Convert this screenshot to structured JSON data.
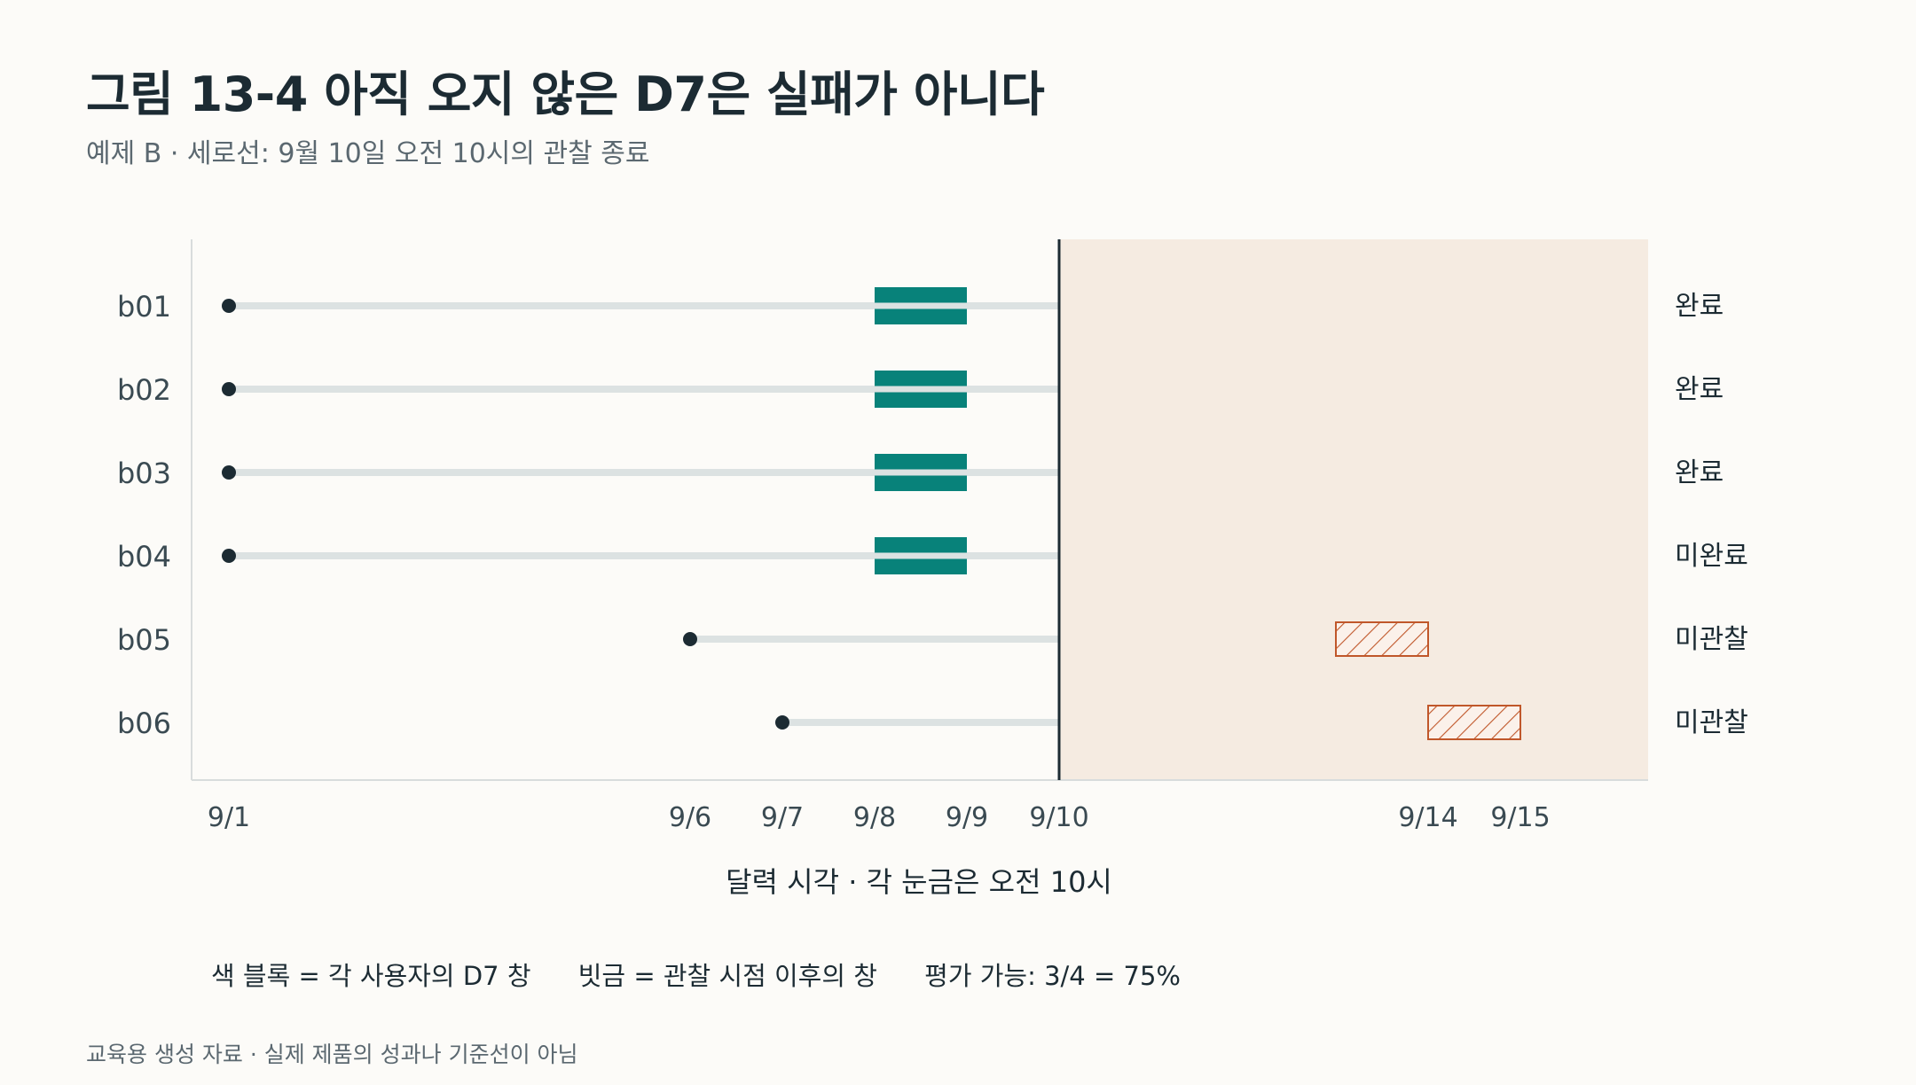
{
  "title": "그림 13-4  아직 오지 않은 D7은 실패가 아니다",
  "subtitle": "예제 B · 세로선: 9월 10일 오전 10시의 관찰 종료",
  "legend": {
    "color_block": "색 블록 = 각 사용자의 D7 창",
    "hatch": "빗금 = 관찰 시점 이후의 창",
    "evaluable": "평가 가능: 3/4 = 75%"
  },
  "footer": "교육용 생성 자료 · 실제 제품의 성과나 기준선이 아님",
  "chart_data": {
    "type": "timeline",
    "xlabel": "달력 시각 · 각 눈금은 오전 10시",
    "x_ticks": [
      "9/1",
      "9/6",
      "9/7",
      "9/8",
      "9/9",
      "9/10",
      "9/14",
      "9/15"
    ],
    "x_range": [
      "9/1",
      "9/16"
    ],
    "cutoff": "9/10",
    "rows": [
      {
        "label": "b01",
        "start": "9/1",
        "window": [
          "9/8",
          "9/9"
        ],
        "status": "완료",
        "observed": true
      },
      {
        "label": "b02",
        "start": "9/1",
        "window": [
          "9/8",
          "9/9"
        ],
        "status": "완료",
        "observed": true
      },
      {
        "label": "b03",
        "start": "9/1",
        "window": [
          "9/8",
          "9/9"
        ],
        "status": "완료",
        "observed": true
      },
      {
        "label": "b04",
        "start": "9/1",
        "window": [
          "9/8",
          "9/9"
        ],
        "status": "미완료",
        "observed": true
      },
      {
        "label": "b05",
        "start": "9/6",
        "window": [
          "9/13",
          "9/14"
        ],
        "status": "미관찰",
        "observed": false
      },
      {
        "label": "b06",
        "start": "9/7",
        "window": [
          "9/14",
          "9/15"
        ],
        "status": "미관찰",
        "observed": false
      }
    ],
    "colors": {
      "window": "#08827a",
      "hatch": "#c0572a",
      "shade": "#f5ebe1",
      "line": "#dce2e2",
      "dot": "#1c2b33"
    }
  }
}
